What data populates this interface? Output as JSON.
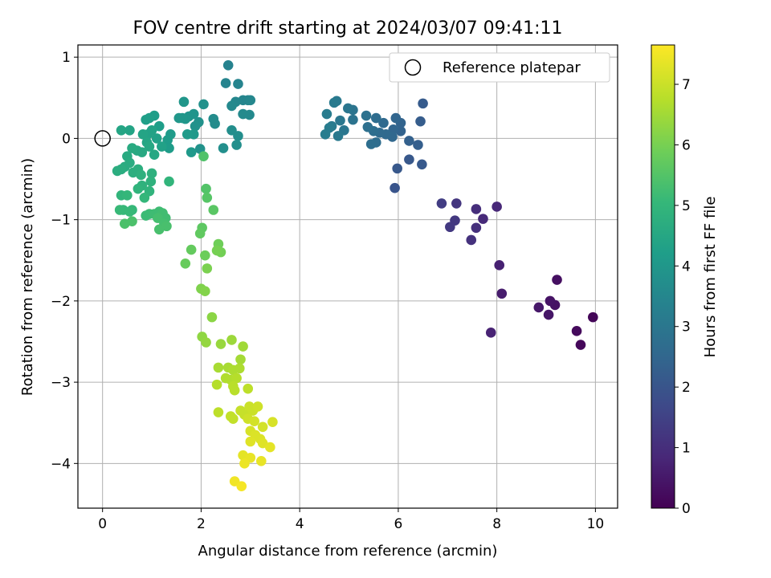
{
  "chart_data": {
    "type": "scatter",
    "title": "FOV centre drift starting at 2024/03/07 09:41:11",
    "xlabel": "Angular distance from reference (arcmin)",
    "ylabel": "Rotation from reference (arcmin)",
    "xlim": [
      -0.5,
      10.45
    ],
    "ylim": [
      -4.55,
      1.15
    ],
    "xticks": [
      0,
      2,
      4,
      6,
      8,
      10
    ],
    "yticks": [
      1,
      0,
      -1,
      -2,
      -3,
      -4
    ],
    "xtick_labels": [
      "0",
      "2",
      "4",
      "6",
      "8",
      "10"
    ],
    "ytick_labels": [
      "1",
      "0",
      "−1",
      "−2",
      "−3",
      "−4"
    ],
    "grid": true,
    "legend": {
      "placement": "top-right",
      "entries": [
        "Reference platepar"
      ]
    },
    "reference_point": {
      "x": 0,
      "y": 0,
      "marker": "open-circle"
    },
    "colorbar": {
      "label": "Hours from first FF file",
      "range": [
        0,
        7.65
      ],
      "ticks": [
        0,
        1,
        2,
        3,
        4,
        5,
        6,
        7
      ],
      "tick_labels": [
        "0",
        "1",
        "2",
        "3",
        "4",
        "5",
        "6",
        "7"
      ],
      "colormap": "viridis",
      "colormap_stops": [
        "#440154",
        "#482878",
        "#3e4989",
        "#31688e",
        "#26828e",
        "#1f9e89",
        "#35b779",
        "#6ece58",
        "#b5de2b",
        "#fde725"
      ]
    },
    "points": [
      {
        "x": 9.95,
        "y": -2.2,
        "h": 0.1
      },
      {
        "x": 9.7,
        "y": -2.54,
        "h": 0.15
      },
      {
        "x": 9.62,
        "y": -2.37,
        "h": 0.2
      },
      {
        "x": 9.22,
        "y": -1.74,
        "h": 0.3
      },
      {
        "x": 9.18,
        "y": -2.05,
        "h": 0.35
      },
      {
        "x": 9.08,
        "y": -2.0,
        "h": 0.4
      },
      {
        "x": 9.05,
        "y": -2.17,
        "h": 0.45
      },
      {
        "x": 8.85,
        "y": -2.08,
        "h": 0.5
      },
      {
        "x": 8.1,
        "y": -1.91,
        "h": 0.6
      },
      {
        "x": 8.05,
        "y": -1.56,
        "h": 0.7
      },
      {
        "x": 7.88,
        "y": -2.39,
        "h": 0.75
      },
      {
        "x": 8.0,
        "y": -0.84,
        "h": 0.85
      },
      {
        "x": 7.72,
        "y": -0.99,
        "h": 0.9
      },
      {
        "x": 7.58,
        "y": -0.87,
        "h": 1.0
      },
      {
        "x": 7.58,
        "y": -1.1,
        "h": 1.05
      },
      {
        "x": 7.48,
        "y": -1.25,
        "h": 1.1
      },
      {
        "x": 7.18,
        "y": -0.8,
        "h": 1.2
      },
      {
        "x": 7.15,
        "y": -1.01,
        "h": 1.25
      },
      {
        "x": 7.05,
        "y": -1.09,
        "h": 1.3
      },
      {
        "x": 6.88,
        "y": -0.8,
        "h": 1.4
      },
      {
        "x": 5.93,
        "y": -0.61,
        "h": 2.0
      },
      {
        "x": 5.98,
        "y": -0.37,
        "h": 2.1
      },
      {
        "x": 6.22,
        "y": -0.26,
        "h": 2.1
      },
      {
        "x": 6.48,
        "y": -0.32,
        "h": 2.15
      },
      {
        "x": 6.5,
        "y": 0.43,
        "h": 2.2
      },
      {
        "x": 6.45,
        "y": 0.21,
        "h": 2.25
      },
      {
        "x": 6.4,
        "y": -0.08,
        "h": 2.3
      },
      {
        "x": 6.22,
        "y": -0.03,
        "h": 2.35
      },
      {
        "x": 6.05,
        "y": 0.09,
        "h": 2.4
      },
      {
        "x": 6.05,
        "y": 0.19,
        "h": 2.45
      },
      {
        "x": 5.95,
        "y": 0.25,
        "h": 2.5
      },
      {
        "x": 5.9,
        "y": 0.11,
        "h": 2.5
      },
      {
        "x": 5.88,
        "y": 0.02,
        "h": 2.55
      },
      {
        "x": 5.75,
        "y": 0.05,
        "h": 2.6
      },
      {
        "x": 5.7,
        "y": 0.19,
        "h": 2.6
      },
      {
        "x": 5.62,
        "y": 0.07,
        "h": 2.65
      },
      {
        "x": 5.55,
        "y": 0.25,
        "h": 2.7
      },
      {
        "x": 5.55,
        "y": -0.05,
        "h": 2.7
      },
      {
        "x": 5.5,
        "y": 0.09,
        "h": 2.75
      },
      {
        "x": 5.45,
        "y": -0.07,
        "h": 2.75
      },
      {
        "x": 5.38,
        "y": 0.14,
        "h": 2.8
      },
      {
        "x": 5.35,
        "y": 0.28,
        "h": 2.85
      },
      {
        "x": 5.08,
        "y": 0.23,
        "h": 2.9
      },
      {
        "x": 5.08,
        "y": 0.35,
        "h": 2.95
      },
      {
        "x": 4.98,
        "y": 0.37,
        "h": 3.0
      },
      {
        "x": 4.9,
        "y": 0.1,
        "h": 3.0
      },
      {
        "x": 4.82,
        "y": 0.22,
        "h": 3.05
      },
      {
        "x": 4.78,
        "y": 0.03,
        "h": 3.1
      },
      {
        "x": 4.75,
        "y": 0.46,
        "h": 3.1
      },
      {
        "x": 4.7,
        "y": 0.44,
        "h": 3.15
      },
      {
        "x": 4.65,
        "y": 0.15,
        "h": 3.15
      },
      {
        "x": 4.6,
        "y": 0.13,
        "h": 3.2
      },
      {
        "x": 4.55,
        "y": 0.3,
        "h": 3.2
      },
      {
        "x": 4.52,
        "y": 0.05,
        "h": 3.25
      },
      {
        "x": 2.55,
        "y": 0.9,
        "h": 3.4
      },
      {
        "x": 2.75,
        "y": 0.67,
        "h": 3.45
      },
      {
        "x": 2.5,
        "y": 0.68,
        "h": 3.45
      },
      {
        "x": 2.85,
        "y": 0.47,
        "h": 3.5
      },
      {
        "x": 2.95,
        "y": 0.47,
        "h": 3.5
      },
      {
        "x": 3.0,
        "y": 0.47,
        "h": 3.55
      },
      {
        "x": 2.7,
        "y": 0.45,
        "h": 3.55
      },
      {
        "x": 2.62,
        "y": 0.4,
        "h": 3.6
      },
      {
        "x": 2.98,
        "y": 0.29,
        "h": 3.6
      },
      {
        "x": 2.85,
        "y": 0.3,
        "h": 3.65
      },
      {
        "x": 2.25,
        "y": 0.24,
        "h": 3.7
      },
      {
        "x": 2.28,
        "y": 0.18,
        "h": 3.7
      },
      {
        "x": 2.62,
        "y": 0.1,
        "h": 3.75
      },
      {
        "x": 2.75,
        "y": 0.03,
        "h": 3.75
      },
      {
        "x": 2.72,
        "y": -0.08,
        "h": 3.8
      },
      {
        "x": 2.45,
        "y": -0.12,
        "h": 3.8
      },
      {
        "x": 2.05,
        "y": 0.42,
        "h": 3.85
      },
      {
        "x": 1.95,
        "y": 0.2,
        "h": 3.85
      },
      {
        "x": 1.98,
        "y": -0.13,
        "h": 3.9
      },
      {
        "x": 1.88,
        "y": 0.15,
        "h": 3.9
      },
      {
        "x": 1.75,
        "y": 0.27,
        "h": 3.95
      },
      {
        "x": 1.85,
        "y": 0.3,
        "h": 3.95
      },
      {
        "x": 1.68,
        "y": 0.24,
        "h": 4.0
      },
      {
        "x": 1.65,
        "y": 0.45,
        "h": 4.0
      },
      {
        "x": 1.62,
        "y": 0.25,
        "h": 4.05
      },
      {
        "x": 1.55,
        "y": 0.25,
        "h": 4.05
      },
      {
        "x": 1.85,
        "y": 0.05,
        "h": 4.1
      },
      {
        "x": 1.8,
        "y": -0.17,
        "h": 4.1
      },
      {
        "x": 1.72,
        "y": 0.05,
        "h": 4.15
      },
      {
        "x": 1.38,
        "y": 0.05,
        "h": 4.15
      },
      {
        "x": 1.32,
        "y": -0.02,
        "h": 4.2
      },
      {
        "x": 1.35,
        "y": -0.12,
        "h": 4.2
      },
      {
        "x": 1.15,
        "y": 0.15,
        "h": 4.25
      },
      {
        "x": 1.05,
        "y": 0.28,
        "h": 4.25
      },
      {
        "x": 0.95,
        "y": 0.25,
        "h": 4.3
      },
      {
        "x": 0.88,
        "y": 0.23,
        "h": 4.3
      },
      {
        "x": 1.1,
        "y": 0.0,
        "h": 4.35
      },
      {
        "x": 1.2,
        "y": -0.1,
        "h": 4.35
      },
      {
        "x": 1.0,
        "y": 0.1,
        "h": 4.4
      },
      {
        "x": 0.92,
        "y": 0.05,
        "h": 4.4
      },
      {
        "x": 0.82,
        "y": 0.05,
        "h": 4.45
      },
      {
        "x": 0.55,
        "y": 0.1,
        "h": 4.45
      },
      {
        "x": 0.38,
        "y": 0.1,
        "h": 4.5
      },
      {
        "x": 0.9,
        "y": -0.05,
        "h": 4.5
      },
      {
        "x": 0.95,
        "y": -0.1,
        "h": 4.55
      },
      {
        "x": 1.05,
        "y": -0.2,
        "h": 4.55
      },
      {
        "x": 0.8,
        "y": -0.17,
        "h": 4.6
      },
      {
        "x": 0.7,
        "y": -0.15,
        "h": 4.6
      },
      {
        "x": 0.6,
        "y": -0.12,
        "h": 4.65
      },
      {
        "x": 0.5,
        "y": -0.22,
        "h": 4.65
      },
      {
        "x": 0.55,
        "y": -0.3,
        "h": 4.7
      },
      {
        "x": 0.45,
        "y": -0.35,
        "h": 4.7
      },
      {
        "x": 0.38,
        "y": -0.38,
        "h": 4.75
      },
      {
        "x": 0.3,
        "y": -0.4,
        "h": 4.75
      },
      {
        "x": 0.62,
        "y": -0.42,
        "h": 4.8
      },
      {
        "x": 0.72,
        "y": -0.38,
        "h": 4.8
      },
      {
        "x": 0.78,
        "y": -0.45,
        "h": 4.85
      },
      {
        "x": 1.0,
        "y": -0.43,
        "h": 4.85
      },
      {
        "x": 0.98,
        "y": -0.53,
        "h": 4.9
      },
      {
        "x": 0.8,
        "y": -0.58,
        "h": 4.9
      },
      {
        "x": 0.72,
        "y": -0.62,
        "h": 4.95
      },
      {
        "x": 0.95,
        "y": -0.65,
        "h": 4.95
      },
      {
        "x": 1.35,
        "y": -0.53,
        "h": 5.0
      },
      {
        "x": 0.38,
        "y": -0.7,
        "h": 5.0
      },
      {
        "x": 0.5,
        "y": -0.7,
        "h": 5.05
      },
      {
        "x": 0.85,
        "y": -0.73,
        "h": 5.05
      },
      {
        "x": 0.6,
        "y": -0.88,
        "h": 5.1
      },
      {
        "x": 0.42,
        "y": -0.88,
        "h": 5.1
      },
      {
        "x": 0.35,
        "y": -0.88,
        "h": 5.15
      },
      {
        "x": 0.55,
        "y": -0.9,
        "h": 5.15
      },
      {
        "x": 0.88,
        "y": -0.95,
        "h": 5.2
      },
      {
        "x": 0.95,
        "y": -0.93,
        "h": 5.2
      },
      {
        "x": 1.05,
        "y": -0.93,
        "h": 5.25
      },
      {
        "x": 1.15,
        "y": -0.9,
        "h": 5.25
      },
      {
        "x": 1.22,
        "y": -0.92,
        "h": 5.3
      },
      {
        "x": 1.28,
        "y": -0.98,
        "h": 5.3
      },
      {
        "x": 1.12,
        "y": -0.98,
        "h": 5.35
      },
      {
        "x": 1.25,
        "y": -1.05,
        "h": 5.35
      },
      {
        "x": 1.3,
        "y": -1.08,
        "h": 5.4
      },
      {
        "x": 1.15,
        "y": -1.12,
        "h": 5.4
      },
      {
        "x": 0.6,
        "y": -1.02,
        "h": 5.45
      },
      {
        "x": 0.45,
        "y": -1.05,
        "h": 5.45
      },
      {
        "x": 2.05,
        "y": -0.22,
        "h": 5.5
      },
      {
        "x": 2.1,
        "y": -0.62,
        "h": 5.55
      },
      {
        "x": 2.12,
        "y": -0.73,
        "h": 5.6
      },
      {
        "x": 2.25,
        "y": -0.88,
        "h": 5.65
      },
      {
        "x": 2.02,
        "y": -1.1,
        "h": 5.7
      },
      {
        "x": 1.98,
        "y": -1.17,
        "h": 5.75
      },
      {
        "x": 1.8,
        "y": -1.37,
        "h": 5.8
      },
      {
        "x": 1.68,
        "y": -1.54,
        "h": 5.85
      },
      {
        "x": 2.08,
        "y": -1.44,
        "h": 5.9
      },
      {
        "x": 2.35,
        "y": -1.3,
        "h": 5.95
      },
      {
        "x": 2.4,
        "y": -1.4,
        "h": 6.0
      },
      {
        "x": 2.32,
        "y": -1.38,
        "h": 6.05
      },
      {
        "x": 2.12,
        "y": -1.6,
        "h": 6.1
      },
      {
        "x": 2.0,
        "y": -1.85,
        "h": 6.15
      },
      {
        "x": 2.08,
        "y": -1.88,
        "h": 6.2
      },
      {
        "x": 2.22,
        "y": -2.2,
        "h": 6.3
      },
      {
        "x": 2.02,
        "y": -2.44,
        "h": 6.35
      },
      {
        "x": 2.1,
        "y": -2.51,
        "h": 6.4
      },
      {
        "x": 2.4,
        "y": -2.53,
        "h": 6.45
      },
      {
        "x": 2.62,
        "y": -2.48,
        "h": 6.5
      },
      {
        "x": 2.85,
        "y": -2.56,
        "h": 6.55
      },
      {
        "x": 2.8,
        "y": -2.72,
        "h": 6.6
      },
      {
        "x": 2.35,
        "y": -2.82,
        "h": 6.65
      },
      {
        "x": 2.55,
        "y": -2.82,
        "h": 6.65
      },
      {
        "x": 2.65,
        "y": -2.85,
        "h": 6.7
      },
      {
        "x": 2.78,
        "y": -2.83,
        "h": 6.7
      },
      {
        "x": 2.5,
        "y": -2.95,
        "h": 6.75
      },
      {
        "x": 2.6,
        "y": -2.97,
        "h": 6.75
      },
      {
        "x": 2.72,
        "y": -2.95,
        "h": 6.8
      },
      {
        "x": 2.32,
        "y": -3.03,
        "h": 6.8
      },
      {
        "x": 2.65,
        "y": -3.05,
        "h": 6.85
      },
      {
        "x": 2.68,
        "y": -3.1,
        "h": 6.85
      },
      {
        "x": 2.95,
        "y": -3.08,
        "h": 6.9
      },
      {
        "x": 2.35,
        "y": -3.37,
        "h": 6.9
      },
      {
        "x": 2.6,
        "y": -3.42,
        "h": 6.95
      },
      {
        "x": 2.65,
        "y": -3.45,
        "h": 6.95
      },
      {
        "x": 2.8,
        "y": -3.35,
        "h": 7.0
      },
      {
        "x": 2.88,
        "y": -3.4,
        "h": 7.0
      },
      {
        "x": 2.98,
        "y": -3.3,
        "h": 7.05
      },
      {
        "x": 3.05,
        "y": -3.35,
        "h": 7.05
      },
      {
        "x": 3.15,
        "y": -3.3,
        "h": 7.1
      },
      {
        "x": 2.95,
        "y": -3.45,
        "h": 7.1
      },
      {
        "x": 3.08,
        "y": -3.48,
        "h": 7.15
      },
      {
        "x": 3.25,
        "y": -3.55,
        "h": 7.15
      },
      {
        "x": 3.45,
        "y": -3.49,
        "h": 7.2
      },
      {
        "x": 3.0,
        "y": -3.6,
        "h": 7.2
      },
      {
        "x": 3.1,
        "y": -3.65,
        "h": 7.25
      },
      {
        "x": 3.2,
        "y": -3.7,
        "h": 7.25
      },
      {
        "x": 3.0,
        "y": -3.73,
        "h": 7.3
      },
      {
        "x": 3.25,
        "y": -3.75,
        "h": 7.3
      },
      {
        "x": 3.4,
        "y": -3.8,
        "h": 7.35
      },
      {
        "x": 2.85,
        "y": -3.9,
        "h": 7.35
      },
      {
        "x": 3.0,
        "y": -3.93,
        "h": 7.4
      },
      {
        "x": 3.22,
        "y": -3.97,
        "h": 7.4
      },
      {
        "x": 2.88,
        "y": -4.0,
        "h": 7.45
      },
      {
        "x": 2.68,
        "y": -4.22,
        "h": 7.5
      },
      {
        "x": 2.82,
        "y": -4.28,
        "h": 7.55
      }
    ]
  }
}
